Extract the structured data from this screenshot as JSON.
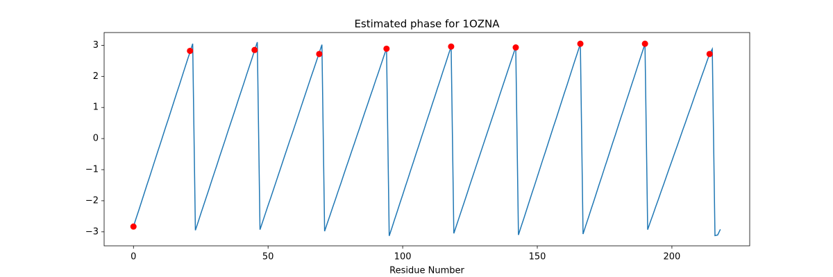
{
  "chart_data": {
    "type": "line",
    "title": "Estimated phase for 1OZNA",
    "x_label": "Residue Number",
    "xlim": [
      -10.9,
      228.9
    ],
    "ylim": [
      -3.45,
      3.41
    ],
    "xticks": [
      0,
      50,
      100,
      150,
      200
    ],
    "yticks": [
      {
        "value": -3,
        "label": "−3"
      },
      {
        "value": -2,
        "label": "−2"
      },
      {
        "value": -1,
        "label": "−1"
      },
      0,
      1,
      2,
      3
    ],
    "series": [
      {
        "type": "line",
        "color": "#1f77b4",
        "x": [
          0,
          1,
          2,
          3,
          4,
          5,
          6,
          7,
          8,
          9,
          10,
          11,
          12,
          13,
          14,
          15,
          16,
          17,
          18,
          19,
          20,
          21,
          22,
          23,
          24,
          25,
          26,
          27,
          28,
          29,
          30,
          31,
          32,
          33,
          34,
          35,
          36,
          37,
          38,
          39,
          40,
          41,
          42,
          43,
          44,
          45,
          46,
          47,
          48,
          49,
          50,
          51,
          52,
          53,
          54,
          55,
          56,
          57,
          58,
          59,
          60,
          61,
          62,
          63,
          64,
          65,
          66,
          67,
          68,
          69,
          70,
          71,
          72,
          73,
          74,
          75,
          76,
          77,
          78,
          79,
          80,
          81,
          82,
          83,
          84,
          85,
          86,
          87,
          88,
          89,
          90,
          91,
          92,
          93,
          94,
          95,
          96,
          97,
          98,
          99,
          100,
          101,
          102,
          103,
          104,
          105,
          106,
          107,
          108,
          109,
          110,
          111,
          112,
          113,
          114,
          115,
          116,
          117,
          118,
          119,
          120,
          121,
          122,
          123,
          124,
          125,
          126,
          127,
          128,
          129,
          130,
          131,
          132,
          133,
          134,
          135,
          136,
          137,
          138,
          139,
          140,
          141,
          142,
          143,
          144,
          145,
          146,
          147,
          148,
          149,
          150,
          151,
          152,
          153,
          154,
          155,
          156,
          157,
          158,
          159,
          160,
          161,
          162,
          163,
          164,
          165,
          166,
          167,
          168,
          169,
          170,
          171,
          172,
          173,
          174,
          175,
          176,
          177,
          178,
          179,
          180,
          181,
          182,
          183,
          184,
          185,
          186,
          187,
          188,
          189,
          190,
          191,
          192,
          193,
          194,
          195,
          196,
          197,
          198,
          199,
          200,
          201,
          202,
          203,
          204,
          205,
          206,
          207,
          208,
          209,
          210,
          211,
          212,
          213,
          214,
          215,
          216,
          217,
          218
        ],
        "values": [
          -2.83,
          -2.56,
          -2.3,
          -2.03,
          -1.76,
          -1.49,
          -1.23,
          -0.96,
          -0.69,
          -0.42,
          -0.16,
          0.11,
          0.38,
          0.64,
          0.91,
          1.18,
          1.45,
          1.71,
          1.98,
          2.25,
          2.52,
          2.78,
          3.05,
          -2.95,
          -2.69,
          -2.42,
          -2.16,
          -1.9,
          -1.64,
          -1.37,
          -1.11,
          -0.85,
          -0.58,
          -0.32,
          -0.06,
          0.21,
          0.47,
          0.73,
          0.99,
          1.26,
          1.52,
          1.78,
          2.05,
          2.31,
          2.57,
          2.84,
          3.1,
          -2.93,
          -2.67,
          -2.41,
          -2.15,
          -1.9,
          -1.64,
          -1.38,
          -1.12,
          -0.86,
          -0.6,
          -0.34,
          -0.08,
          0.17,
          0.43,
          0.69,
          0.95,
          1.21,
          1.47,
          1.73,
          1.99,
          2.24,
          2.5,
          2.76,
          3.02,
          -2.98,
          -2.72,
          -2.47,
          -2.21,
          -1.96,
          -1.7,
          -1.45,
          -1.19,
          -0.93,
          -0.68,
          -0.42,
          -0.17,
          0.09,
          0.34,
          0.6,
          0.86,
          1.11,
          1.37,
          1.62,
          1.88,
          2.13,
          2.39,
          2.65,
          2.9,
          -3.13,
          -2.87,
          -2.6,
          -2.34,
          -2.07,
          -1.81,
          -1.54,
          -1.28,
          -1.01,
          -0.75,
          -0.48,
          -0.22,
          0.05,
          0.31,
          0.58,
          0.84,
          1.11,
          1.37,
          1.64,
          1.9,
          2.17,
          2.43,
          2.7,
          2.96,
          -3.05,
          -2.79,
          -2.53,
          -2.27,
          -2.01,
          -1.75,
          -1.48,
          -1.22,
          -0.96,
          -0.7,
          -0.44,
          -0.18,
          0.08,
          0.34,
          0.6,
          0.86,
          1.12,
          1.39,
          1.65,
          1.91,
          2.17,
          2.43,
          2.69,
          2.95,
          -3.1,
          -2.83,
          -2.57,
          -2.3,
          -2.03,
          -1.76,
          -1.5,
          -1.23,
          -0.96,
          -0.69,
          -0.43,
          -0.16,
          0.11,
          0.38,
          0.64,
          0.91,
          1.18,
          1.45,
          1.71,
          1.98,
          2.25,
          2.52,
          2.78,
          3.05,
          -3.07,
          -2.8,
          -2.54,
          -2.27,
          -2.01,
          -1.74,
          -1.47,
          -1.21,
          -0.94,
          -0.68,
          -0.41,
          -0.14,
          0.12,
          0.39,
          0.66,
          0.92,
          1.19,
          1.45,
          1.72,
          1.98,
          2.25,
          2.52,
          2.78,
          3.05,
          -2.93,
          -2.68,
          -2.44,
          -2.19,
          -1.95,
          -1.7,
          -1.46,
          -1.21,
          -0.96,
          -0.72,
          -0.47,
          -0.23,
          0.02,
          0.27,
          0.51,
          0.76,
          1.0,
          1.25,
          1.5,
          1.74,
          1.99,
          2.23,
          2.48,
          2.72,
          2.88,
          -3.12,
          -3.1,
          -2.92
        ]
      },
      {
        "type": "scatter",
        "color": "#ff0000",
        "x": [
          0,
          21,
          45,
          69,
          94,
          118,
          142,
          166,
          190,
          214
        ],
        "values": [
          -2.83,
          2.82,
          2.85,
          2.72,
          2.89,
          2.96,
          2.93,
          3.05,
          3.05,
          2.72
        ]
      }
    ]
  }
}
